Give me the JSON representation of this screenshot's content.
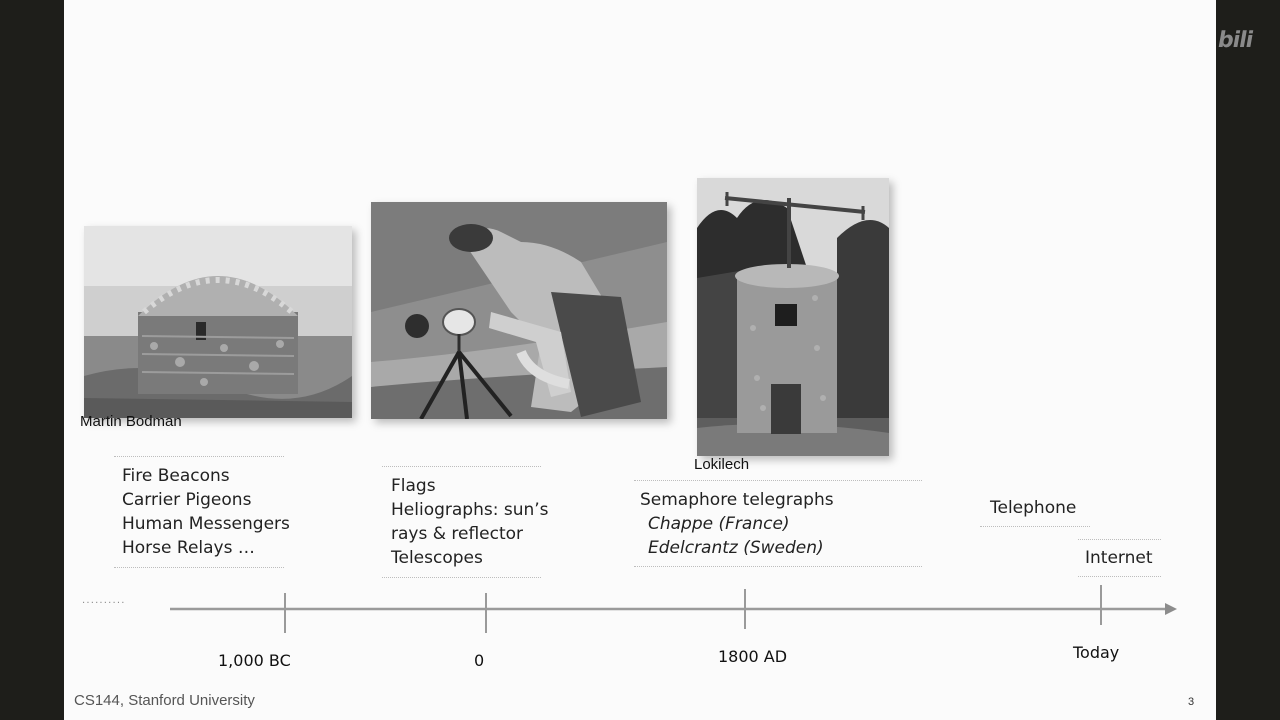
{
  "credits": {
    "photo1": "Martin Bodman",
    "photo3": "Lokilech"
  },
  "eras": {
    "ancient": [
      "Fire Beacons",
      "Carrier Pigeons",
      "Human Messengers",
      "Horse Relays …"
    ],
    "classical": [
      "Flags",
      "Heliographs: sun’s",
      "rays & reflector",
      "Telescopes"
    ],
    "semaphore": {
      "title": "Semaphore telegraphs",
      "inventors": [
        "Chappe (France)",
        "Edelcrantz (Sweden)"
      ]
    },
    "telephone": "Telephone",
    "internet": "Internet"
  },
  "timeline": {
    "lead_dots": "· · · · · · · · · ·",
    "ticks": [
      "1,000 BC",
      "0",
      "1800 AD",
      "Today"
    ]
  },
  "footer": {
    "course": "CS144, Stanford University",
    "page": "3"
  },
  "logo": "bili"
}
